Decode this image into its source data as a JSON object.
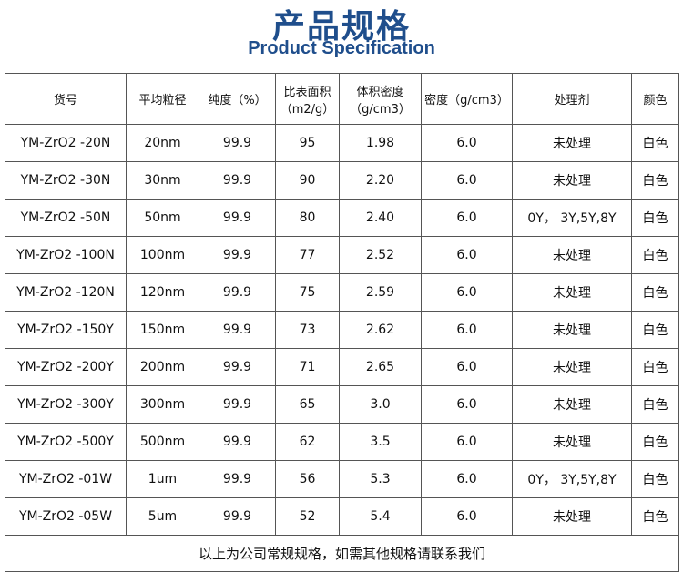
{
  "header": {
    "title": "产品规格",
    "subtitle": "Product Specification"
  },
  "table": {
    "columns": [
      "货号",
      "平均粒径",
      "纯度（%）",
      [
        "比表面积",
        "（m2/g）"
      ],
      [
        "体积密度",
        "（g/cm3）"
      ],
      "密度（g/cm3）",
      "处理剂",
      "颜色"
    ],
    "rows": [
      [
        "YM-ZrO2 -20N",
        "20nm",
        "99.9",
        "95",
        "1.98",
        "6.0",
        "未处理",
        "白色"
      ],
      [
        "YM-ZrO2 -30N",
        "30nm",
        "99.9",
        "90",
        "2.20",
        "6.0",
        "未处理",
        "白色"
      ],
      [
        "YM-ZrO2 -50N",
        "50nm",
        "99.9",
        "80",
        "2.40",
        "6.0",
        "0Y， 3Y,5Y,8Y",
        "白色"
      ],
      [
        "YM-ZrO2 -100N",
        "100nm",
        "99.9",
        "77",
        "2.52",
        "6.0",
        "未处理",
        "白色"
      ],
      [
        "YM-ZrO2 -120N",
        "120nm",
        "99.9",
        "75",
        "2.59",
        "6.0",
        "未处理",
        "白色"
      ],
      [
        "YM-ZrO2 -150Y",
        "150nm",
        "99.9",
        "73",
        "2.62",
        "6.0",
        "未处理",
        "白色"
      ],
      [
        "YM-ZrO2 -200Y",
        "200nm",
        "99.9",
        "71",
        "2.65",
        "6.0",
        "未处理",
        "白色"
      ],
      [
        "YM-ZrO2 -300Y",
        "300nm",
        "99.9",
        "65",
        "3.0",
        "6.0",
        "未处理",
        "白色"
      ],
      [
        "YM-ZrO2 -500Y",
        "500nm",
        "99.9",
        "62",
        "3.5",
        "6.0",
        "未处理",
        "白色"
      ],
      [
        "YM-ZrO2 -01W",
        "1um",
        "99.9",
        "56",
        "5.3",
        "6.0",
        "0Y， 3Y,5Y,8Y",
        "白色"
      ],
      [
        "YM-ZrO2 -05W",
        "5um",
        "99.9",
        "52",
        "5.4",
        "6.0",
        "未处理",
        "白色"
      ]
    ],
    "footer": "以上为公司常规规格，如需其他规格请联系我们"
  }
}
